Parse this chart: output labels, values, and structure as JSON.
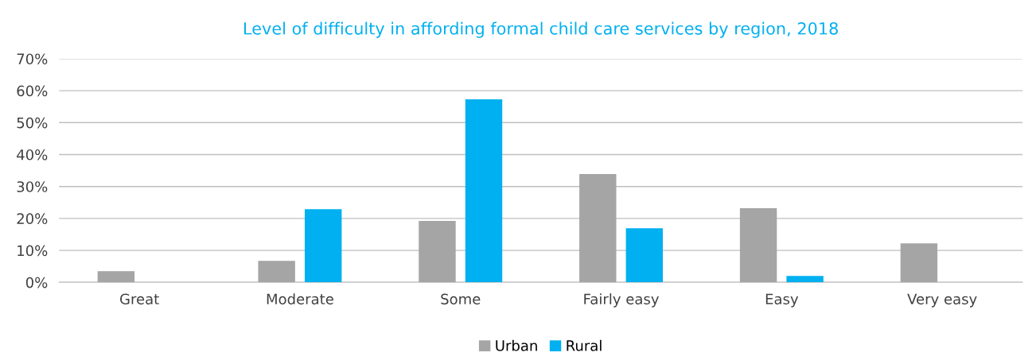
{
  "chart_data": {
    "type": "bar",
    "title": "Level of difficulty in affording formal child care services by region, 2018",
    "categories": [
      "Great",
      "Moderate",
      "Some",
      "Fairly easy",
      "Easy",
      "Very easy"
    ],
    "series": [
      {
        "name": "Urban",
        "color": "#a5a5a5",
        "values": [
          3.5,
          6.7,
          19.2,
          33.9,
          23.2,
          12.2
        ]
      },
      {
        "name": "Rural",
        "color": "#00b0f0",
        "values": [
          0,
          22.9,
          57.3,
          16.9,
          2.0,
          0
        ]
      }
    ],
    "ylim": [
      0,
      70
    ],
    "yticks": [
      {
        "value": 0,
        "label": "0%"
      },
      {
        "value": 10,
        "label": "10%"
      },
      {
        "value": 20,
        "label": "20%"
      },
      {
        "value": 30,
        "label": "30%"
      },
      {
        "value": 40,
        "label": "40%"
      },
      {
        "value": 50,
        "label": "50%"
      },
      {
        "value": 60,
        "label": "60%"
      },
      {
        "value": 70,
        "label": "70%"
      }
    ],
    "grid": "y",
    "legend": "bottom"
  }
}
